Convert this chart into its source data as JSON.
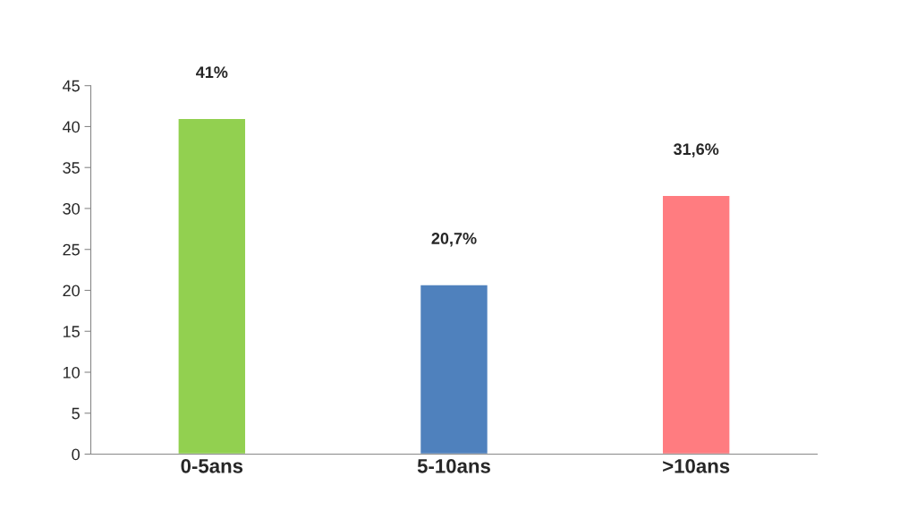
{
  "chart_data": {
    "type": "bar",
    "categories": [
      "0-5ans",
      "5-10ans",
      ">10ans"
    ],
    "values": [
      41,
      20.7,
      31.6
    ],
    "colors": [
      "#92d050",
      "#4f81bd",
      "#ff7c80"
    ],
    "value_labels": [
      "41%",
      "20,7%",
      "31,6%"
    ],
    "ylim": [
      0,
      45
    ],
    "yticks": [
      0,
      5,
      10,
      15,
      20,
      25,
      30,
      35,
      40,
      45
    ],
    "grid": false,
    "legend": false
  }
}
